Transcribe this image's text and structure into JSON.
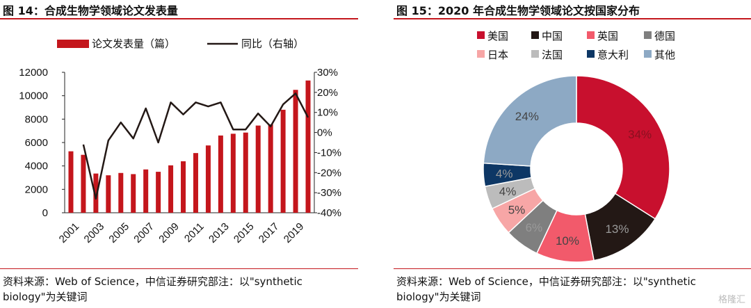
{
  "chart_data": [
    {
      "type": "bar",
      "title": "图 14：合成生物学领域论文发表量",
      "categories": [
        "2001",
        "2002",
        "2003",
        "2004",
        "2005",
        "2006",
        "2007",
        "2008",
        "2009",
        "2010",
        "2011",
        "2012",
        "2013",
        "2014",
        "2015",
        "2016",
        "2017",
        "2018",
        "2019",
        "2020"
      ],
      "x_tick_labels": [
        "2001",
        "2003",
        "2005",
        "2007",
        "2009",
        "2011",
        "2013",
        "2015",
        "2017",
        "2019"
      ],
      "series": [
        {
          "name": "论文发表量（篇）",
          "type": "bar",
          "axis": "left",
          "values": [
            5250,
            4950,
            3350,
            3200,
            3400,
            3300,
            3700,
            3500,
            4050,
            4400,
            5100,
            5750,
            6600,
            6750,
            6850,
            7450,
            7550,
            8800,
            10500,
            11300
          ]
        },
        {
          "name": "同比（右轴）",
          "type": "line",
          "axis": "right",
          "values": [
            null,
            -6,
            -33,
            -4,
            5,
            -3,
            12,
            -5,
            15,
            9,
            15,
            13,
            15,
            1.5,
            1.5,
            9.5,
            3,
            14,
            19.5,
            7.5
          ]
        }
      ],
      "ylim": [
        0,
        12000
      ],
      "yticks": [
        0,
        2000,
        4000,
        6000,
        8000,
        10000,
        12000
      ],
      "y2lim": [
        -40,
        30
      ],
      "y2ticks": [
        "30%",
        "20%",
        "10%",
        "0%",
        "-10%",
        "-20%",
        "-30%",
        "-40%"
      ],
      "legend_position": "top",
      "colors": {
        "bar": "#c4161c",
        "line": "#231815"
      },
      "source": "资料来源：Web of Science，中信证券研究部注：以\"synthetic biology\"为关键词"
    },
    {
      "type": "pie",
      "title": "图 15：2020 年合成生物学领域论文按国家分布",
      "labels": [
        "美国",
        "中国",
        "英国",
        "德国",
        "日本",
        "法国",
        "意大利",
        "其他"
      ],
      "values": [
        34,
        13,
        10,
        6,
        5,
        4,
        4,
        24
      ],
      "value_labels": [
        "34%",
        "13%",
        "10%",
        "6%",
        "5%",
        "4%",
        "4%",
        "24%"
      ],
      "colors": [
        "#c8102e",
        "#231815",
        "#f25a6b",
        "#7f7f7f",
        "#f7a6a6",
        "#bcbcbc",
        "#0d3765",
        "#8da9c4"
      ],
      "legend_position": "top",
      "source": "资料来源：Web of Science，中信证券研究部注：以\"synthetic biology\"为关键词"
    }
  ],
  "watermark": "格隆汇"
}
